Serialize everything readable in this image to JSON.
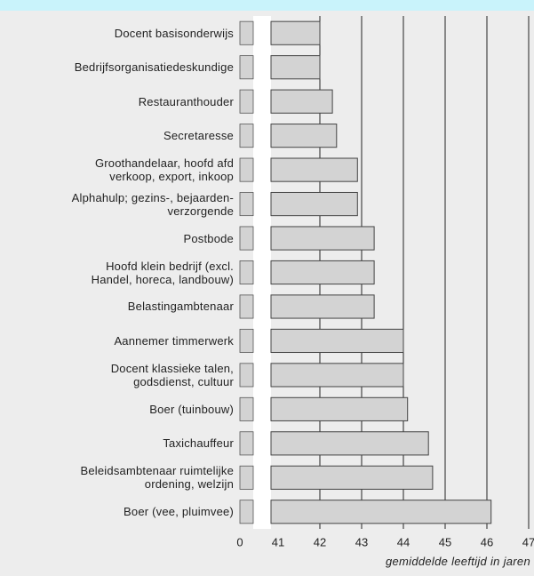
{
  "chart_data": {
    "type": "barh",
    "categories": [
      "Docent basisonderwijs",
      "Bedrijfsorganisatiedeskundige",
      "Restauranthouder",
      "Secretaresse",
      "Groothandelaar, hoofd afd\nverkoop, export, inkoop",
      "Alphahulp; gezins-, bejaarden-\nverzorgende",
      "Postbode",
      "Hoofd klein bedrijf (excl.\nHandel, horeca, landbouw)",
      "Belastingambtenaar",
      "Aannemer timmerwerk",
      "Docent klassieke talen,\ngodsdienst, cultuur",
      "Boer (tuinbouw)",
      "Taxichauffeur",
      "Beleidsambtenaar ruimtelijke\nordening, welzijn",
      "Boer (vee, pluimvee)"
    ],
    "values": [
      42.0,
      42.0,
      42.3,
      42.4,
      42.9,
      42.9,
      43.3,
      43.3,
      43.3,
      44.0,
      44.0,
      44.1,
      44.6,
      44.7,
      46.1
    ],
    "color": "#d3d3d3",
    "xlabel": "gemiddelde leeftijd in jaren",
    "axis_break": [
      0,
      41
    ],
    "xlim": [
      41,
      47
    ],
    "xticks": [
      0,
      41,
      42,
      43,
      44,
      45,
      46,
      47
    ],
    "grid": true
  }
}
